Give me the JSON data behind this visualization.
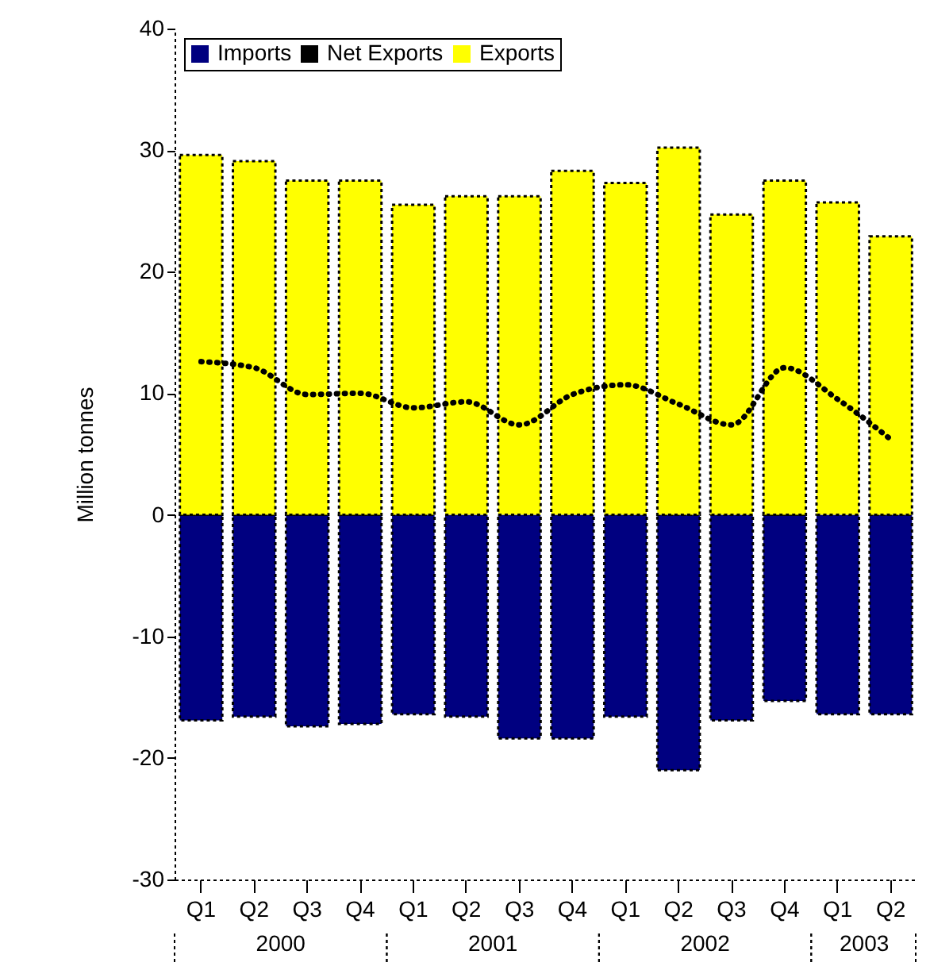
{
  "chart_data": {
    "type": "bar",
    "ylabel": "Million tonnes",
    "stacked": true,
    "categories": [
      "Q1",
      "Q2",
      "Q3",
      "Q4",
      "Q1",
      "Q2",
      "Q3",
      "Q4",
      "Q1",
      "Q2",
      "Q3",
      "Q4",
      "Q1",
      "Q2"
    ],
    "series": [
      {
        "name": "Imports",
        "color": "#000080",
        "values": [
          -16.9,
          -16.6,
          -17.4,
          -17.2,
          -16.4,
          -16.6,
          -18.4,
          -18.4,
          -16.6,
          -21.0,
          -16.9,
          -15.3,
          -16.4,
          -16.4
        ]
      },
      {
        "name": "Net Exports",
        "type": "line",
        "color": "#000000",
        "line_style": "dotted",
        "values": [
          12.6,
          12.1,
          9.9,
          10.0,
          8.8,
          9.3,
          7.4,
          9.9,
          10.7,
          9.1,
          7.4,
          12.1,
          9.5,
          6.2
        ]
      },
      {
        "name": "Exports",
        "color": "#ffff00",
        "values": [
          29.6,
          29.1,
          27.5,
          27.5,
          25.5,
          26.2,
          26.2,
          28.3,
          27.3,
          30.2,
          24.7,
          27.5,
          25.7,
          22.9
        ]
      }
    ],
    "annotations": [
      "2000",
      "2001",
      "2002",
      "2003"
    ],
    "ylim": [
      -30,
      40
    ],
    "yticks": [
      -30,
      -20,
      -10,
      0,
      10,
      20,
      30,
      40
    ],
    "legend": "top left"
  }
}
